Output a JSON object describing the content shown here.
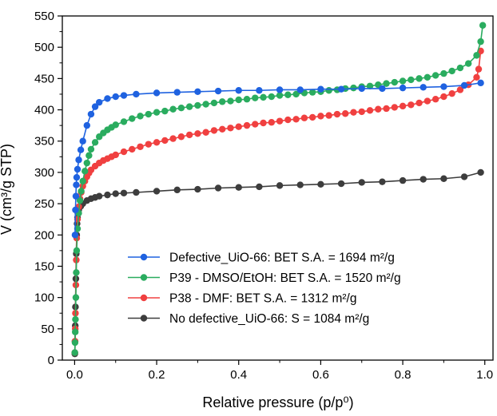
{
  "chart_data": {
    "type": "line",
    "xlabel": "Relative pressure (p/p⁰)",
    "ylabel": "V (cm³/g STP)",
    "xlim": [
      -0.03,
      1.02
    ],
    "ylim": [
      0,
      550
    ],
    "xticks": [
      "0.0",
      "0.2",
      "0.4",
      "0.6",
      "0.8",
      "1.0"
    ],
    "yticks": [
      "0",
      "50",
      "100",
      "150",
      "200",
      "250",
      "300",
      "350",
      "400",
      "450",
      "500",
      "550"
    ],
    "grid": false,
    "legend_position": "lower-right",
    "series": [
      {
        "name": "Defective_UiO-66: BET S.A. = 1694 m²/g",
        "color": "#1f62e0",
        "x": [
          0.001,
          0.002,
          0.003,
          0.004,
          0.005,
          0.007,
          0.01,
          0.015,
          0.02,
          0.03,
          0.04,
          0.05,
          0.06,
          0.08,
          0.1,
          0.12,
          0.15,
          0.2,
          0.25,
          0.3,
          0.35,
          0.4,
          0.45,
          0.5,
          0.55,
          0.6,
          0.65,
          0.7,
          0.75,
          0.8,
          0.85,
          0.9,
          0.95,
          0.99
        ],
        "values": [
          200,
          240,
          262,
          280,
          292,
          305,
          320,
          336,
          350,
          375,
          393,
          405,
          412,
          418,
          421,
          423,
          425,
          427,
          428,
          429,
          430,
          431,
          431,
          432,
          432,
          433,
          433,
          434,
          434,
          435,
          436,
          437,
          439,
          443
        ]
      },
      {
        "name": "P39 - DMSO/EtOH: BET S.A. = 1520 m²/g",
        "color": "#2aac5f",
        "x": [
          0.0005,
          0.001,
          0.0015,
          0.002,
          0.003,
          0.004,
          0.005,
          0.007,
          0.01,
          0.013,
          0.016,
          0.02,
          0.025,
          0.03,
          0.035,
          0.04,
          0.05,
          0.06,
          0.07,
          0.08,
          0.09,
          0.1,
          0.12,
          0.14,
          0.16,
          0.18,
          0.2,
          0.22,
          0.24,
          0.26,
          0.28,
          0.3,
          0.32,
          0.34,
          0.36,
          0.38,
          0.4,
          0.42,
          0.44,
          0.46,
          0.48,
          0.5,
          0.52,
          0.54,
          0.56,
          0.58,
          0.6,
          0.62,
          0.64,
          0.66,
          0.68,
          0.7,
          0.72,
          0.74,
          0.76,
          0.78,
          0.8,
          0.82,
          0.84,
          0.86,
          0.88,
          0.9,
          0.92,
          0.94,
          0.96,
          0.98,
          0.99,
          0.995
        ],
        "values": [
          12,
          28,
          45,
          65,
          100,
          140,
          175,
          210,
          235,
          255,
          270,
          286,
          302,
          315,
          327,
          337,
          348,
          357,
          363,
          368,
          372,
          376,
          381,
          386,
          390,
          393,
          396,
          398,
          401,
          403,
          405,
          407,
          409,
          411,
          413,
          414,
          416,
          417,
          419,
          420,
          421,
          423,
          424,
          425,
          427,
          428,
          429,
          431,
          432,
          434,
          435,
          437,
          438,
          440,
          442,
          444,
          446,
          448,
          450,
          452,
          455,
          458,
          462,
          467,
          474,
          487,
          509,
          535
        ]
      },
      {
        "name": "P38 - DMF: BET S.A. = 1312 m²/g",
        "color": "#f04040",
        "x": [
          0.0005,
          0.001,
          0.0015,
          0.002,
          0.003,
          0.004,
          0.005,
          0.007,
          0.01,
          0.013,
          0.016,
          0.02,
          0.025,
          0.03,
          0.035,
          0.04,
          0.05,
          0.06,
          0.07,
          0.08,
          0.09,
          0.1,
          0.12,
          0.14,
          0.16,
          0.18,
          0.2,
          0.22,
          0.24,
          0.26,
          0.28,
          0.3,
          0.32,
          0.34,
          0.36,
          0.38,
          0.4,
          0.42,
          0.44,
          0.46,
          0.48,
          0.5,
          0.52,
          0.54,
          0.56,
          0.58,
          0.6,
          0.62,
          0.64,
          0.66,
          0.68,
          0.7,
          0.72,
          0.74,
          0.76,
          0.78,
          0.8,
          0.82,
          0.84,
          0.86,
          0.88,
          0.9,
          0.92,
          0.94,
          0.96,
          0.98,
          0.985,
          0.99
        ],
        "values": [
          12,
          30,
          50,
          75,
          120,
          160,
          195,
          225,
          245,
          258,
          268,
          278,
          286,
          293,
          299,
          304,
          310,
          315,
          319,
          322,
          325,
          328,
          333,
          337,
          341,
          345,
          348,
          351,
          354,
          357,
          360,
          362,
          364,
          367,
          369,
          371,
          373,
          375,
          377,
          379,
          380,
          382,
          384,
          385,
          387,
          388,
          390,
          391,
          393,
          394,
          396,
          397,
          399,
          401,
          402,
          404,
          406,
          408,
          411,
          414,
          417,
          421,
          426,
          432,
          440,
          452,
          465,
          494
        ]
      },
      {
        "name": "No defective_UiO-66: S = 1084 m²/g",
        "color": "#3d3d3d",
        "x": [
          0.0005,
          0.001,
          0.0015,
          0.002,
          0.003,
          0.004,
          0.005,
          0.006,
          0.007,
          0.008,
          0.01,
          0.015,
          0.02,
          0.03,
          0.04,
          0.05,
          0.06,
          0.08,
          0.1,
          0.12,
          0.15,
          0.2,
          0.25,
          0.3,
          0.35,
          0.4,
          0.45,
          0.5,
          0.55,
          0.6,
          0.65,
          0.7,
          0.75,
          0.8,
          0.85,
          0.9,
          0.95,
          0.99
        ],
        "values": [
          10,
          30,
          55,
          85,
          130,
          170,
          200,
          218,
          228,
          234,
          240,
          246,
          250,
          255,
          258,
          260,
          262,
          264,
          266,
          267,
          268,
          270,
          272,
          273,
          275,
          276,
          277,
          279,
          280,
          281,
          282,
          284,
          285,
          287,
          289,
          290,
          293,
          300
        ]
      }
    ]
  }
}
